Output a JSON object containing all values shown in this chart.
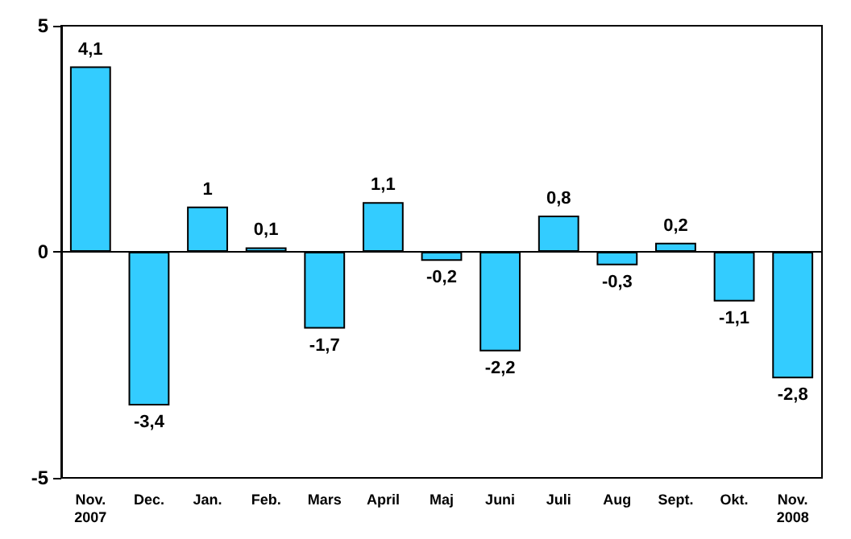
{
  "chart_data": {
    "type": "bar",
    "categories": [
      "Nov.\n2007",
      "Dec.",
      "Jan.",
      "Feb.",
      "Mars",
      "April",
      "Maj",
      "Juni",
      "Juli",
      "Aug",
      "Sept.",
      "Okt.",
      "Nov.\n2008"
    ],
    "values": [
      4.1,
      -3.4,
      1,
      0.1,
      -1.7,
      1.1,
      -0.2,
      -2.2,
      0.8,
      -0.3,
      0.2,
      -1.1,
      -2.8
    ],
    "value_labels": [
      "4,1",
      "-3,4",
      "1",
      "0,1",
      "-1,7",
      "1,1",
      "-0,2",
      "-2,2",
      "0,8",
      "-0,3",
      "0,2",
      "-1,1",
      "-2,8"
    ],
    "color": "#33ccff",
    "ylim": [
      -5,
      5
    ],
    "yticks": [
      -5,
      0,
      5
    ]
  }
}
